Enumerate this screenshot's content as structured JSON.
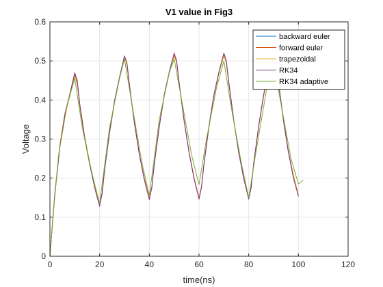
{
  "chart_data": {
    "type": "line",
    "title": "V1 value in Fig3",
    "xlabel": "time(ns)",
    "ylabel": "Voltage",
    "xlim": [
      0,
      120
    ],
    "ylim": [
      0,
      0.6
    ],
    "xticks": [
      0,
      20,
      40,
      60,
      80,
      100,
      120
    ],
    "yticks": [
      0,
      0.1,
      0.2,
      0.3,
      0.4,
      0.5,
      0.6
    ],
    "grid": true,
    "legend_position": "top-right",
    "series": [
      {
        "name": "backward euler",
        "color": "#0072BD",
        "points": [
          [
            0,
            0
          ],
          [
            1,
            0.08
          ],
          [
            2,
            0.16
          ],
          [
            4,
            0.28
          ],
          [
            6,
            0.36
          ],
          [
            8,
            0.41
          ],
          [
            10,
            0.465
          ],
          [
            11,
            0.44
          ],
          [
            12,
            0.385
          ],
          [
            14,
            0.3
          ],
          [
            16,
            0.235
          ],
          [
            18,
            0.178
          ],
          [
            20,
            0.132
          ],
          [
            21,
            0.16
          ],
          [
            22,
            0.22
          ],
          [
            24,
            0.315
          ],
          [
            26,
            0.395
          ],
          [
            28,
            0.455
          ],
          [
            30,
            0.51
          ],
          [
            31,
            0.49
          ],
          [
            32,
            0.435
          ],
          [
            34,
            0.34
          ],
          [
            36,
            0.26
          ],
          [
            38,
            0.198
          ],
          [
            40,
            0.148
          ],
          [
            41,
            0.175
          ],
          [
            42,
            0.235
          ],
          [
            44,
            0.33
          ],
          [
            46,
            0.41
          ],
          [
            48,
            0.468
          ],
          [
            50,
            0.515
          ],
          [
            51,
            0.495
          ],
          [
            52,
            0.44
          ],
          [
            54,
            0.345
          ],
          [
            56,
            0.265
          ],
          [
            58,
            0.2
          ],
          [
            60,
            0.148
          ],
          [
            61,
            0.176
          ],
          [
            62,
            0.235
          ],
          [
            64,
            0.33
          ],
          [
            66,
            0.41
          ],
          [
            68,
            0.468
          ],
          [
            70,
            0.515
          ],
          [
            71,
            0.495
          ],
          [
            72,
            0.44
          ],
          [
            74,
            0.345
          ],
          [
            76,
            0.265
          ],
          [
            78,
            0.2
          ],
          [
            80,
            0.148
          ],
          [
            81,
            0.176
          ],
          [
            82,
            0.235
          ],
          [
            84,
            0.33
          ],
          [
            86,
            0.41
          ],
          [
            88,
            0.468
          ],
          [
            90,
            0.515
          ],
          [
            91,
            0.495
          ],
          [
            92,
            0.44
          ],
          [
            94,
            0.345
          ],
          [
            96,
            0.265
          ],
          [
            98,
            0.205
          ],
          [
            100,
            0.155
          ]
        ]
      },
      {
        "name": "forward euler",
        "color": "#D95319",
        "points": [
          [
            0,
            0
          ],
          [
            1,
            0.085
          ],
          [
            2,
            0.165
          ],
          [
            4,
            0.285
          ],
          [
            6,
            0.365
          ],
          [
            8,
            0.415
          ],
          [
            10,
            0.47
          ],
          [
            11,
            0.445
          ],
          [
            12,
            0.39
          ],
          [
            14,
            0.305
          ],
          [
            16,
            0.24
          ],
          [
            18,
            0.182
          ],
          [
            20,
            0.135
          ],
          [
            21,
            0.163
          ],
          [
            22,
            0.223
          ],
          [
            24,
            0.318
          ],
          [
            26,
            0.398
          ],
          [
            28,
            0.458
          ],
          [
            30,
            0.512
          ],
          [
            31,
            0.492
          ],
          [
            32,
            0.437
          ],
          [
            34,
            0.342
          ],
          [
            36,
            0.262
          ],
          [
            38,
            0.2
          ],
          [
            40,
            0.15
          ],
          [
            41,
            0.177
          ],
          [
            42,
            0.237
          ],
          [
            44,
            0.332
          ],
          [
            46,
            0.412
          ],
          [
            48,
            0.47
          ],
          [
            50,
            0.517
          ],
          [
            51,
            0.497
          ],
          [
            52,
            0.442
          ],
          [
            54,
            0.347
          ],
          [
            56,
            0.267
          ],
          [
            58,
            0.202
          ],
          [
            60,
            0.15
          ],
          [
            61,
            0.178
          ],
          [
            62,
            0.237
          ],
          [
            64,
            0.332
          ],
          [
            66,
            0.412
          ],
          [
            68,
            0.47
          ],
          [
            70,
            0.517
          ],
          [
            71,
            0.497
          ],
          [
            72,
            0.442
          ],
          [
            74,
            0.347
          ],
          [
            76,
            0.267
          ],
          [
            78,
            0.202
          ],
          [
            80,
            0.15
          ],
          [
            81,
            0.178
          ],
          [
            82,
            0.237
          ],
          [
            84,
            0.332
          ],
          [
            86,
            0.412
          ],
          [
            88,
            0.47
          ],
          [
            90,
            0.517
          ],
          [
            91,
            0.497
          ],
          [
            92,
            0.442
          ],
          [
            94,
            0.347
          ],
          [
            96,
            0.267
          ],
          [
            98,
            0.207
          ],
          [
            100,
            0.157
          ]
        ]
      },
      {
        "name": "trapezoidal",
        "color": "#EDB120",
        "points": [
          [
            0,
            0
          ],
          [
            1,
            0.08
          ],
          [
            2,
            0.16
          ],
          [
            4,
            0.28
          ],
          [
            6,
            0.36
          ],
          [
            8,
            0.41
          ],
          [
            10,
            0.462
          ],
          [
            11,
            0.44
          ],
          [
            12,
            0.385
          ],
          [
            14,
            0.3
          ],
          [
            16,
            0.235
          ],
          [
            18,
            0.178
          ],
          [
            20,
            0.133
          ],
          [
            21,
            0.16
          ],
          [
            22,
            0.22
          ],
          [
            24,
            0.315
          ],
          [
            26,
            0.395
          ],
          [
            28,
            0.455
          ],
          [
            30,
            0.508
          ],
          [
            31,
            0.49
          ],
          [
            32,
            0.435
          ],
          [
            34,
            0.34
          ],
          [
            36,
            0.26
          ],
          [
            38,
            0.198
          ],
          [
            40,
            0.149
          ],
          [
            41,
            0.175
          ],
          [
            42,
            0.235
          ],
          [
            44,
            0.33
          ],
          [
            46,
            0.41
          ],
          [
            48,
            0.468
          ],
          [
            50,
            0.513
          ],
          [
            51,
            0.495
          ],
          [
            52,
            0.44
          ],
          [
            54,
            0.345
          ],
          [
            56,
            0.265
          ],
          [
            58,
            0.2
          ],
          [
            60,
            0.149
          ],
          [
            61,
            0.176
          ],
          [
            62,
            0.235
          ],
          [
            64,
            0.33
          ],
          [
            66,
            0.41
          ],
          [
            68,
            0.468
          ],
          [
            70,
            0.513
          ],
          [
            71,
            0.495
          ],
          [
            72,
            0.44
          ],
          [
            74,
            0.345
          ],
          [
            76,
            0.265
          ],
          [
            78,
            0.2
          ],
          [
            80,
            0.149
          ],
          [
            81,
            0.176
          ],
          [
            82,
            0.235
          ],
          [
            84,
            0.33
          ],
          [
            86,
            0.41
          ],
          [
            88,
            0.468
          ],
          [
            90,
            0.513
          ],
          [
            91,
            0.495
          ],
          [
            92,
            0.44
          ],
          [
            94,
            0.345
          ],
          [
            96,
            0.265
          ],
          [
            98,
            0.205
          ],
          [
            100,
            0.156
          ]
        ]
      },
      {
        "name": "RK34",
        "color": "#7E2F8E",
        "points": [
          [
            0,
            0
          ],
          [
            1,
            0.08
          ],
          [
            2,
            0.16
          ],
          [
            4,
            0.28
          ],
          [
            6,
            0.36
          ],
          [
            8,
            0.415
          ],
          [
            10,
            0.468
          ],
          [
            11,
            0.45
          ],
          [
            12,
            0.39
          ],
          [
            14,
            0.303
          ],
          [
            16,
            0.236
          ],
          [
            18,
            0.175
          ],
          [
            20,
            0.128
          ],
          [
            21,
            0.16
          ],
          [
            22,
            0.222
          ],
          [
            24,
            0.318
          ],
          [
            26,
            0.398
          ],
          [
            28,
            0.458
          ],
          [
            30,
            0.513
          ],
          [
            31,
            0.495
          ],
          [
            32,
            0.44
          ],
          [
            34,
            0.342
          ],
          [
            36,
            0.26
          ],
          [
            38,
            0.195
          ],
          [
            40,
            0.145
          ],
          [
            41,
            0.176
          ],
          [
            42,
            0.237
          ],
          [
            44,
            0.333
          ],
          [
            46,
            0.414
          ],
          [
            48,
            0.472
          ],
          [
            50,
            0.52
          ],
          [
            51,
            0.5
          ],
          [
            52,
            0.445
          ],
          [
            54,
            0.348
          ],
          [
            56,
            0.265
          ],
          [
            58,
            0.198
          ],
          [
            60,
            0.146
          ],
          [
            61,
            0.177
          ],
          [
            62,
            0.238
          ],
          [
            64,
            0.334
          ],
          [
            66,
            0.414
          ],
          [
            68,
            0.472
          ],
          [
            70,
            0.52
          ],
          [
            71,
            0.5
          ],
          [
            72,
            0.445
          ],
          [
            74,
            0.348
          ],
          [
            76,
            0.265
          ],
          [
            78,
            0.198
          ],
          [
            80,
            0.146
          ],
          [
            81,
            0.177
          ],
          [
            82,
            0.238
          ],
          [
            84,
            0.334
          ],
          [
            86,
            0.414
          ],
          [
            88,
            0.472
          ],
          [
            90,
            0.52
          ],
          [
            91,
            0.5
          ],
          [
            92,
            0.445
          ],
          [
            94,
            0.348
          ],
          [
            96,
            0.265
          ],
          [
            98,
            0.2
          ],
          [
            100,
            0.153
          ]
        ]
      },
      {
        "name": "RK34 adaptive",
        "color": "#77AC30",
        "points": [
          [
            0,
            0
          ],
          [
            1.5,
            0.12
          ],
          [
            3.5,
            0.26
          ],
          [
            7,
            0.39
          ],
          [
            10,
            0.455
          ],
          [
            13,
            0.33
          ],
          [
            17,
            0.21
          ],
          [
            20,
            0.135
          ],
          [
            24,
            0.33
          ],
          [
            28,
            0.455
          ],
          [
            30,
            0.505
          ],
          [
            33,
            0.39
          ],
          [
            37,
            0.24
          ],
          [
            40,
            0.155
          ],
          [
            44,
            0.35
          ],
          [
            48,
            0.47
          ],
          [
            50,
            0.505
          ],
          [
            53,
            0.4
          ],
          [
            57,
            0.26
          ],
          [
            60,
            0.183
          ],
          [
            63,
            0.3
          ],
          [
            67,
            0.43
          ],
          [
            70,
            0.5
          ],
          [
            73,
            0.38
          ],
          [
            77,
            0.24
          ],
          [
            80,
            0.15
          ],
          [
            83,
            0.27
          ],
          [
            87,
            0.42
          ],
          [
            90,
            0.49
          ],
          [
            93,
            0.39
          ],
          [
            97,
            0.25
          ],
          [
            100,
            0.185
          ],
          [
            102,
            0.195
          ]
        ]
      }
    ]
  }
}
